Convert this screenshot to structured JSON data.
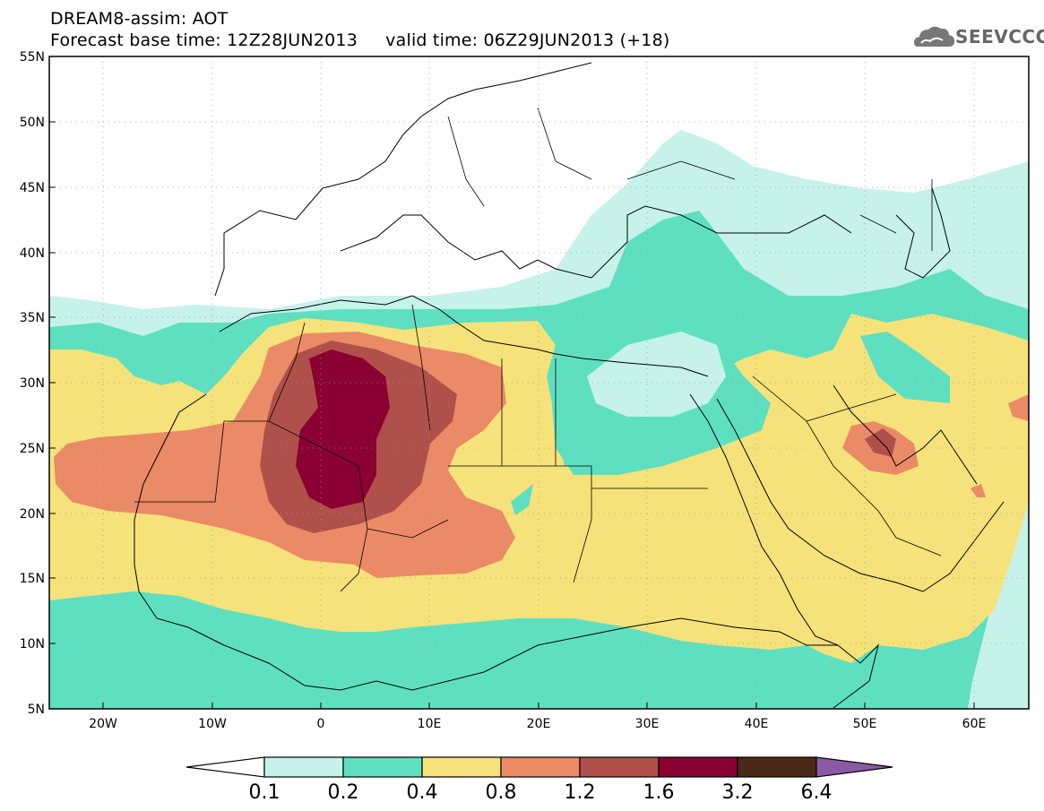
{
  "header": {
    "line1": "DREAM8-assim: AOT",
    "line2": "Forecast base time: 12Z28JUN2013     valid time: 06Z29JUN2013 (+18)",
    "logo_text": "SEEVCCC",
    "logo_icon": "cloud-icon"
  },
  "map": {
    "projection": "lat-lon",
    "lon_range": [
      -25,
      65
    ],
    "lat_range": [
      5,
      55
    ],
    "lat_ticks": [
      "5N",
      "10N",
      "15N",
      "20N",
      "25N",
      "30N",
      "35N",
      "40N",
      "45N",
      "50N",
      "55N"
    ],
    "lon_ticks": [
      "20W",
      "10W",
      "0",
      "10E",
      "20E",
      "30E",
      "40E",
      "50E",
      "60E"
    ],
    "grid": "dotted"
  },
  "colorbar": {
    "labels": [
      "0.1",
      "0.2",
      "0.4",
      "0.8",
      "1.2",
      "1.6",
      "3.2",
      "6.4"
    ],
    "colors": [
      "#ffffff",
      "#c6f2ea",
      "#5ee0c0",
      "#f6e27a",
      "#eb8a66",
      "#b0504a",
      "#8a0032",
      "#4a2a18",
      "#8a5aa4"
    ]
  }
}
